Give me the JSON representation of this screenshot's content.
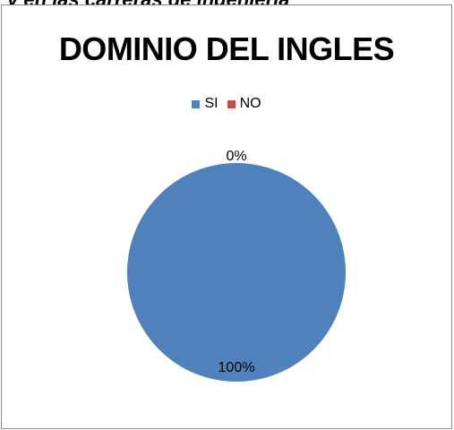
{
  "caption": "y en las carreras de ingenieria",
  "chart_data": {
    "type": "pie",
    "title": "DOMINIO DEL INGLES",
    "categories": [
      "SI",
      "NO"
    ],
    "values": [
      100,
      0
    ],
    "data_labels": [
      "100%",
      "0%"
    ],
    "colors": [
      "#4f81bd",
      "#c0504d"
    ],
    "legend_position": "top"
  }
}
